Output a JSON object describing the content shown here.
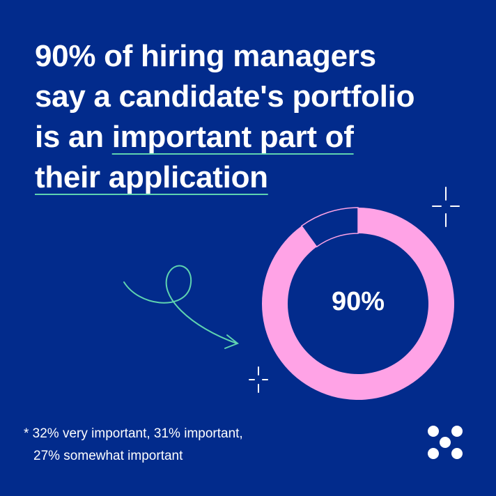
{
  "headline": {
    "line1": "90% of hiring managers",
    "line2": "say a candidate's portfolio",
    "line3_plain": "is an ",
    "line3_underlined": "important part of",
    "line4_underlined": "their application"
  },
  "footnote": {
    "line1": "* 32% very important, 31% important,",
    "line2": "27% somewhat important"
  },
  "colors": {
    "background": "#022b8c",
    "accent_pink": "#ffa3e6",
    "accent_teal": "#5fd3b0",
    "text": "#ffffff"
  },
  "icons": [
    "sparkle-icon",
    "curved-arrow-icon",
    "five-dot-logo-icon"
  ],
  "chart_data": {
    "type": "pie",
    "variant": "donut",
    "center_label": "90%",
    "slices": [
      {
        "value": 90,
        "color": "#ffa3e6"
      },
      {
        "value": 10,
        "color": "#022b8c"
      }
    ]
  }
}
